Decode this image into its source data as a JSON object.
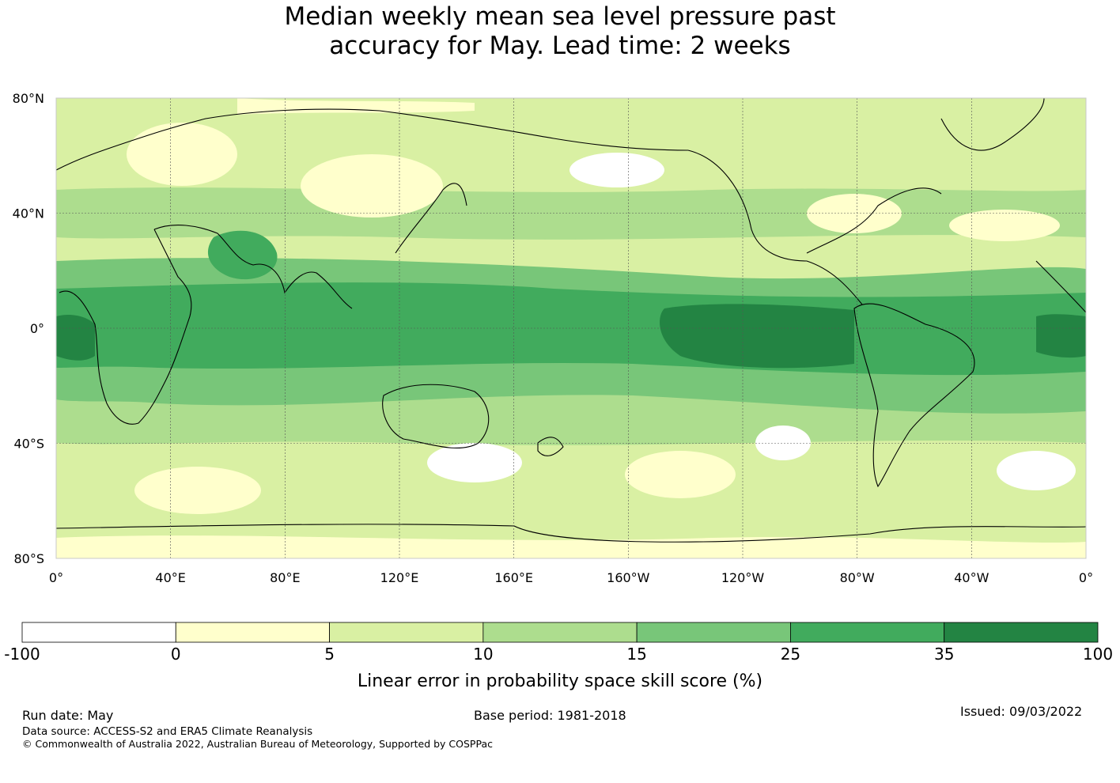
{
  "title": {
    "line1": "Median weekly mean sea level pressure past",
    "line2": "accuracy for May. Lead time: 2 weeks"
  },
  "map": {
    "lat_labels": [
      "80°N",
      "40°N",
      "0°",
      "40°S",
      "80°S"
    ],
    "lon_labels": [
      "0°",
      "40°E",
      "80°E",
      "120°E",
      "160°E",
      "160°W",
      "120°W",
      "80°W",
      "40°W",
      "0°"
    ],
    "lat_range": [
      -80,
      80
    ],
    "lon_range": [
      0,
      360
    ],
    "gridlines": true
  },
  "colorbar": {
    "ticks": [
      "-100",
      "0",
      "5",
      "10",
      "15",
      "25",
      "35",
      "100"
    ],
    "colors": [
      "#ffffff",
      "#ffffcc",
      "#d9f0a3",
      "#addd8e",
      "#78c679",
      "#41ab5d",
      "#238443"
    ],
    "label": "Linear error in probability space skill score (%)"
  },
  "footer": {
    "run_date": "Run date: May",
    "base_period": "Base period: 1981-2018",
    "issued": "Issued: 09/03/2022",
    "data_source": "Data source: ACCESS-S2 and ERA5 Climate Reanalysis",
    "copyright": "© Commonwealth of Australia 2022, Australian Bureau of Meteorology, Supported by COSPPac"
  }
}
